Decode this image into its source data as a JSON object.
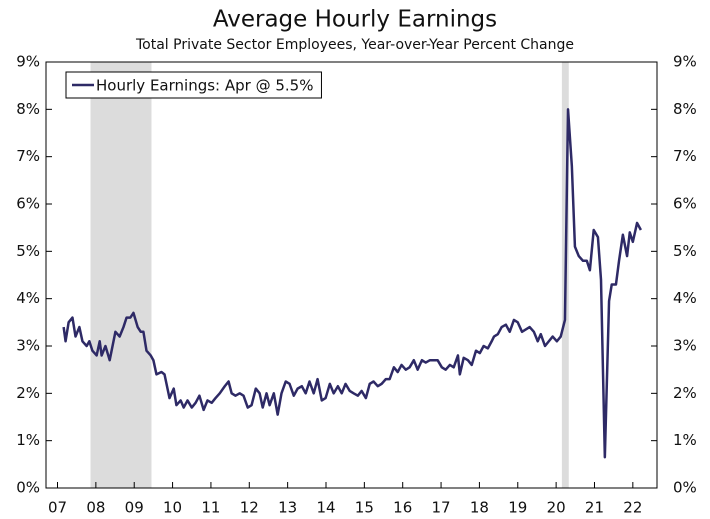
{
  "chart_data": {
    "type": "line",
    "title": "Average Hourly Earnings",
    "subtitle": "Total Private Sector Employees, Year-over-Year Percent Change",
    "x": [
      2007.16,
      2007.21,
      2007.29,
      2007.39,
      2007.47,
      2007.57,
      2007.65,
      2007.76,
      2007.83,
      2007.91,
      2008.02,
      2008.1,
      2008.15,
      2008.25,
      2008.36,
      2008.51,
      2008.62,
      2008.72,
      2008.8,
      2008.9,
      2008.98,
      2009.09,
      2009.17,
      2009.24,
      2009.32,
      2009.43,
      2009.5,
      2009.58,
      2009.71,
      2009.79,
      2009.92,
      2010.03,
      2010.1,
      2010.21,
      2010.29,
      2010.39,
      2010.5,
      2010.6,
      2010.7,
      2010.81,
      2010.91,
      2011.02,
      2011.12,
      2011.23,
      2011.36,
      2011.46,
      2011.54,
      2011.64,
      2011.75,
      2011.85,
      2011.96,
      2012.06,
      2012.17,
      2012.27,
      2012.35,
      2012.45,
      2012.53,
      2012.64,
      2012.74,
      2012.84,
      2012.95,
      2013.05,
      2013.16,
      2013.26,
      2013.37,
      2013.47,
      2013.57,
      2013.68,
      2013.78,
      2013.89,
      2013.99,
      2014.1,
      2014.2,
      2014.31,
      2014.41,
      2014.51,
      2014.62,
      2014.72,
      2014.83,
      2014.93,
      2015.04,
      2015.14,
      2015.24,
      2015.35,
      2015.45,
      2015.56,
      2015.66,
      2015.77,
      2015.87,
      2015.97,
      2016.08,
      2016.18,
      2016.29,
      2016.39,
      2016.5,
      2016.6,
      2016.71,
      2016.81,
      2016.91,
      2017.02,
      2017.12,
      2017.23,
      2017.33,
      2017.44,
      2017.49,
      2017.59,
      2017.7,
      2017.8,
      2017.91,
      2018.01,
      2018.11,
      2018.22,
      2018.32,
      2018.38,
      2018.48,
      2018.58,
      2018.69,
      2018.79,
      2018.9,
      2019.0,
      2019.11,
      2019.21,
      2019.31,
      2019.42,
      2019.52,
      2019.6,
      2019.71,
      2019.81,
      2019.91,
      2020.02,
      2020.12,
      2020.23,
      2020.31,
      2020.41,
      2020.49,
      2020.59,
      2020.7,
      2020.8,
      2020.88,
      2020.98,
      2021.09,
      2021.17,
      2021.27,
      2021.38,
      2021.45,
      2021.56,
      2021.64,
      2021.74,
      2021.85,
      2021.92,
      2022.0,
      2022.11,
      2022.21
    ],
    "series": [
      {
        "name": "Hourly Earnings: Apr @ 5.5%",
        "color": "#2e2a66",
        "values": [
          3.4,
          3.1,
          3.5,
          3.6,
          3.2,
          3.4,
          3.1,
          3.0,
          3.1,
          2.9,
          2.8,
          3.1,
          2.8,
          3.0,
          2.7,
          3.3,
          3.2,
          3.4,
          3.6,
          3.6,
          3.7,
          3.4,
          3.3,
          3.3,
          2.9,
          2.8,
          2.7,
          2.4,
          2.45,
          2.4,
          1.9,
          2.1,
          1.75,
          1.85,
          1.7,
          1.85,
          1.7,
          1.8,
          1.95,
          1.65,
          1.85,
          1.8,
          1.9,
          2.0,
          2.15,
          2.25,
          2.0,
          1.95,
          2.0,
          1.95,
          1.7,
          1.75,
          2.1,
          2.0,
          1.7,
          2.0,
          1.75,
          2.0,
          1.55,
          2.0,
          2.25,
          2.2,
          1.95,
          2.1,
          2.15,
          2.0,
          2.25,
          2.0,
          2.3,
          1.85,
          1.9,
          2.2,
          2.0,
          2.15,
          2.0,
          2.2,
          2.05,
          2.0,
          1.95,
          2.05,
          1.9,
          2.2,
          2.25,
          2.15,
          2.2,
          2.3,
          2.3,
          2.55,
          2.45,
          2.6,
          2.5,
          2.55,
          2.7,
          2.5,
          2.7,
          2.65,
          2.7,
          2.7,
          2.7,
          2.55,
          2.5,
          2.6,
          2.55,
          2.8,
          2.4,
          2.75,
          2.7,
          2.6,
          2.9,
          2.85,
          3.0,
          2.95,
          3.1,
          3.2,
          3.25,
          3.4,
          3.45,
          3.3,
          3.55,
          3.5,
          3.3,
          3.35,
          3.4,
          3.3,
          3.1,
          3.25,
          3.0,
          3.1,
          3.2,
          3.1,
          3.2,
          3.55,
          8.0,
          6.8,
          5.1,
          4.9,
          4.8,
          4.8,
          4.6,
          5.45,
          5.3,
          4.4,
          0.65,
          3.95,
          4.3,
          4.3,
          4.8,
          5.35,
          4.9,
          5.4,
          5.2,
          5.6,
          5.45
        ]
      }
    ],
    "xlim": [
      2006.7,
      2022.63
    ],
    "xticks": [
      {
        "value": 2007,
        "label": "07"
      },
      {
        "value": 2008,
        "label": "08"
      },
      {
        "value": 2009,
        "label": "09"
      },
      {
        "value": 2010,
        "label": "10"
      },
      {
        "value": 2011,
        "label": "11"
      },
      {
        "value": 2012,
        "label": "12"
      },
      {
        "value": 2013,
        "label": "13"
      },
      {
        "value": 2014,
        "label": "14"
      },
      {
        "value": 2015,
        "label": "15"
      },
      {
        "value": 2016,
        "label": "16"
      },
      {
        "value": 2017,
        "label": "17"
      },
      {
        "value": 2018,
        "label": "18"
      },
      {
        "value": 2019,
        "label": "19"
      },
      {
        "value": 2020,
        "label": "20"
      },
      {
        "value": 2021,
        "label": "21"
      },
      {
        "value": 2022,
        "label": "22"
      }
    ],
    "ylim": [
      0,
      9
    ],
    "yticks": [
      {
        "value": 0,
        "label": "0%"
      },
      {
        "value": 1,
        "label": "1%"
      },
      {
        "value": 2,
        "label": "2%"
      },
      {
        "value": 3,
        "label": "3%"
      },
      {
        "value": 4,
        "label": "4%"
      },
      {
        "value": 5,
        "label": "5%"
      },
      {
        "value": 6,
        "label": "6%"
      },
      {
        "value": 7,
        "label": "7%"
      },
      {
        "value": 8,
        "label": "8%"
      },
      {
        "value": 9,
        "label": "9%"
      }
    ],
    "y2lim": [
      0,
      9
    ],
    "y2ticks": [
      {
        "value": 0,
        "label": "0%"
      },
      {
        "value": 1,
        "label": "1%"
      },
      {
        "value": 2,
        "label": "2%"
      },
      {
        "value": 3,
        "label": "3%"
      },
      {
        "value": 4,
        "label": "4%"
      },
      {
        "value": 5,
        "label": "5%"
      },
      {
        "value": 6,
        "label": "6%"
      },
      {
        "value": 7,
        "label": "7%"
      },
      {
        "value": 8,
        "label": "8%"
      },
      {
        "value": 9,
        "label": "9%"
      }
    ],
    "shaded_periods": [
      {
        "start": 2007.86,
        "end": 2009.45,
        "color": "#dcdcdc"
      },
      {
        "start": 2020.15,
        "end": 2020.33,
        "color": "#dcdcdc"
      }
    ],
    "grid": false,
    "legend": "upper left"
  }
}
